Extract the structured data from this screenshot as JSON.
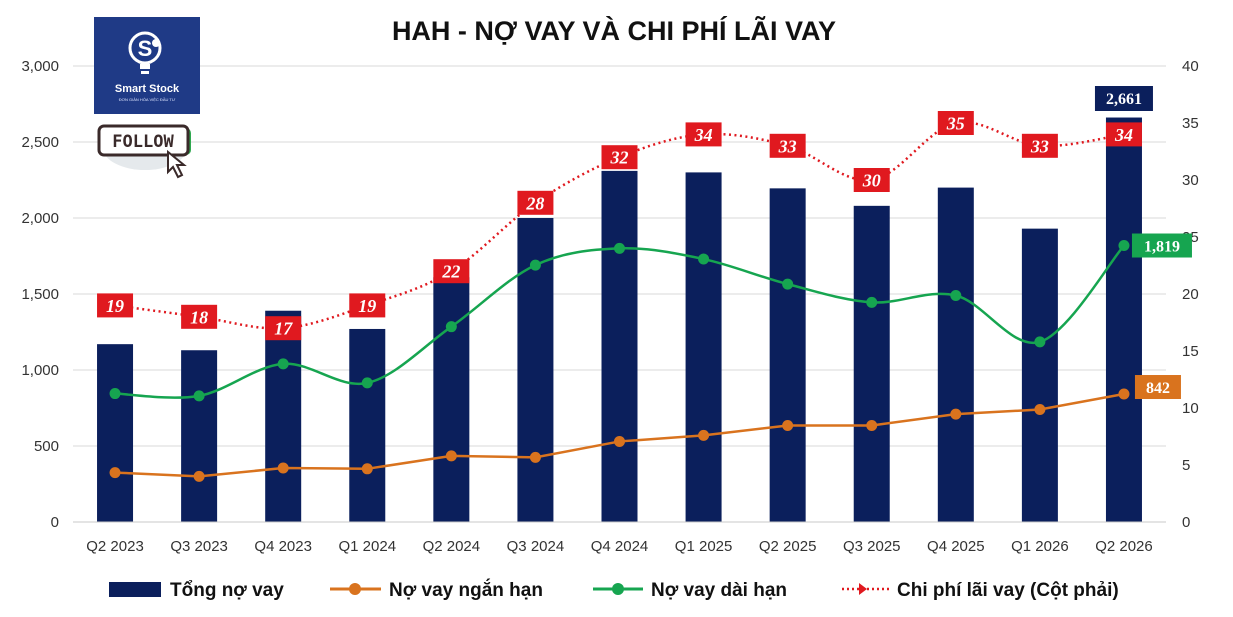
{
  "chart_data": {
    "type": "bar",
    "title": "HAH - NỢ VAY VÀ CHI PHÍ LÃI VAY",
    "categories": [
      "Q2 2023",
      "Q3 2023",
      "Q4 2023",
      "Q1 2024",
      "Q2 2024",
      "Q3 2024",
      "Q4 2024",
      "Q1 2025",
      "Q2 2025",
      "Q3 2025",
      "Q4 2025",
      "Q1 2026",
      "Q2 2026"
    ],
    "y_left": {
      "min": 0,
      "max": 3000,
      "ticks": [
        "0",
        "500",
        "1,000",
        "1,500",
        "2,000",
        "2,500",
        "3,000"
      ]
    },
    "y_right": {
      "min": 0,
      "max": 40,
      "ticks": [
        "0",
        "5",
        "10",
        "15",
        "20",
        "25",
        "30",
        "35",
        "40"
      ]
    },
    "grid": true,
    "legend_position": "bottom",
    "series": [
      {
        "name": "Tổng nợ vay",
        "kind": "bar",
        "axis": "left",
        "color": "#0b1f5c",
        "values": [
          1170,
          1130,
          1390,
          1270,
          1610,
          2000,
          2310,
          2300,
          2195,
          2080,
          2200,
          1930,
          2661
        ]
      },
      {
        "name": "Nợ vay ngắn hạn",
        "kind": "line",
        "axis": "left",
        "color": "#d9731e",
        "values": [
          325,
          300,
          355,
          350,
          435,
          425,
          530,
          570,
          635,
          635,
          710,
          740,
          842
        ]
      },
      {
        "name": "Nợ vay dài hạn",
        "kind": "smooth-line",
        "axis": "left",
        "color": "#16a550",
        "values": [
          845,
          830,
          1040,
          915,
          1285,
          1690,
          1800,
          1730,
          1565,
          1445,
          1490,
          1185,
          1819
        ]
      },
      {
        "name": "Chi phí lãi vay (Cột phải)",
        "kind": "dotted-line",
        "axis": "right",
        "color": "#e0191f",
        "values": [
          19,
          18,
          17,
          19,
          22,
          28,
          32,
          34,
          33,
          30,
          35,
          33,
          34
        ]
      }
    ],
    "data_labels": {
      "cost": [
        "19",
        "18",
        "17",
        "19",
        "22",
        "28",
        "32",
        "34",
        "33",
        "30",
        "35",
        "33",
        "34"
      ],
      "total_last": "2,661",
      "long_last": "1,819",
      "short_last": "842"
    }
  },
  "logo": {
    "name": "Smart Stock",
    "tagline": "ĐƠN GIẢN HÓA VIỆC ĐẦU TƯ",
    "icon": "lightbulb-s-icon"
  },
  "follow_badge": {
    "label": "FOLLOW",
    "icon": "cursor-arrow-icon"
  }
}
